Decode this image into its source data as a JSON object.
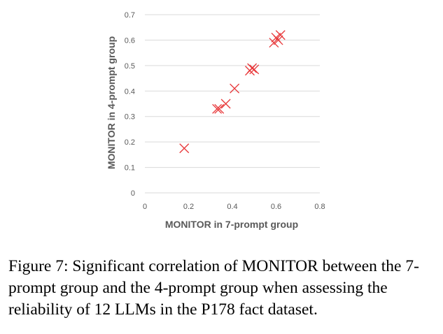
{
  "chart_data": {
    "type": "scatter",
    "xlabel": "MONITOR in 7-prompt group",
    "ylabel": "MONITOR in 4-prompt group",
    "xlim": [
      0,
      0.8
    ],
    "ylim": [
      0,
      0.7
    ],
    "xticks": [
      "0",
      "0.2",
      "0.4",
      "0.6",
      "0.8"
    ],
    "yticks": [
      "0",
      "0.1",
      "0.2",
      "0.3",
      "0.4",
      "0.5",
      "0.6",
      "0.7"
    ],
    "grid": "horizontal",
    "marker": "x",
    "marker_color": "#e8383a",
    "points": [
      {
        "x": 0.18,
        "y": 0.175
      },
      {
        "x": 0.33,
        "y": 0.33
      },
      {
        "x": 0.34,
        "y": 0.33
      },
      {
        "x": 0.37,
        "y": 0.35
      },
      {
        "x": 0.41,
        "y": 0.41
      },
      {
        "x": 0.48,
        "y": 0.48
      },
      {
        "x": 0.49,
        "y": 0.49
      },
      {
        "x": 0.5,
        "y": 0.485
      },
      {
        "x": 0.59,
        "y": 0.59
      },
      {
        "x": 0.6,
        "y": 0.61
      },
      {
        "x": 0.61,
        "y": 0.6
      },
      {
        "x": 0.62,
        "y": 0.62
      }
    ]
  },
  "caption": "Figure 7: Significant correlation of MONITOR between the 7-prompt group and the 4-prompt group when assessing the reliability of 12 LLMs in the P178 fact dataset."
}
